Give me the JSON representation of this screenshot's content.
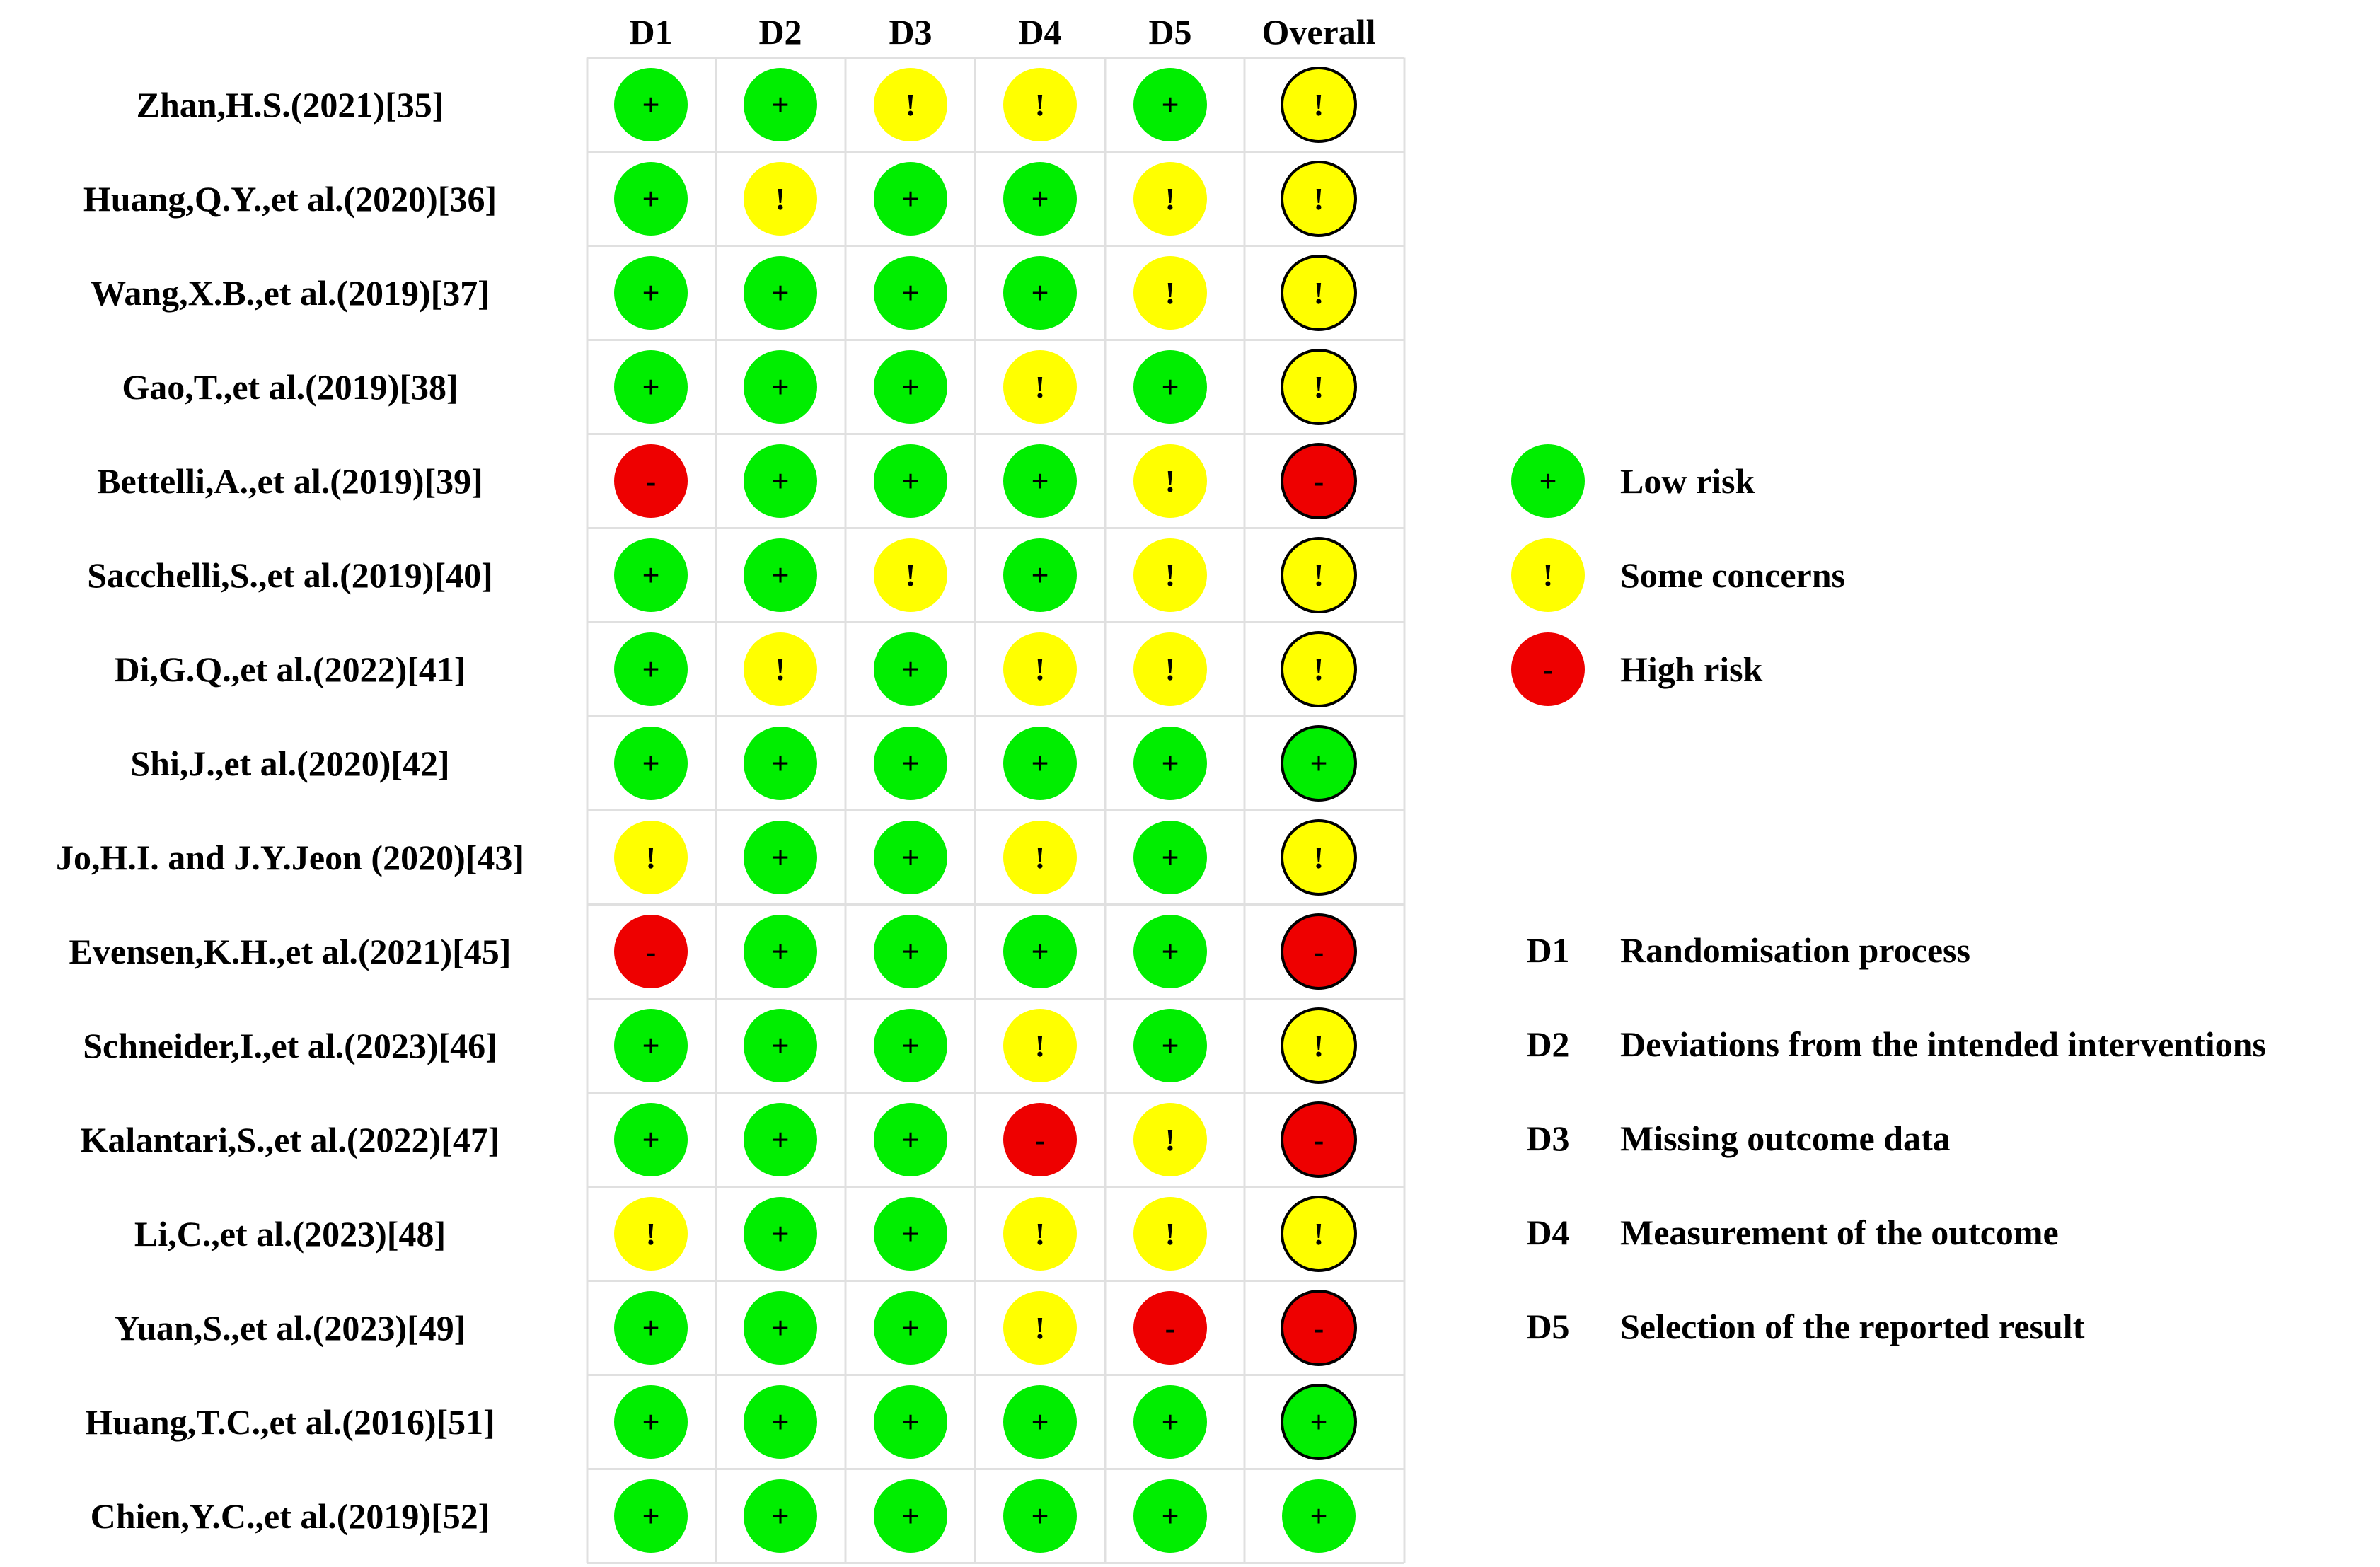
{
  "chart_data": {
    "type": "table",
    "columns": [
      "D1",
      "D2",
      "D3",
      "D4",
      "D5",
      "Overall"
    ],
    "rows": [
      {
        "study": "Zhan,H.S.(2021)[35]",
        "values": [
          "low",
          "low",
          "some",
          "some",
          "low",
          "some"
        ]
      },
      {
        "study": "Huang,Q.Y.,et al.(2020)[36]",
        "values": [
          "low",
          "some",
          "low",
          "low",
          "some",
          "some"
        ]
      },
      {
        "study": "Wang,X.B.,et al.(2019)[37]",
        "values": [
          "low",
          "low",
          "low",
          "low",
          "some",
          "some"
        ]
      },
      {
        "study": "Gao,T.,et al.(2019)[38]",
        "values": [
          "low",
          "low",
          "low",
          "some",
          "low",
          "some"
        ]
      },
      {
        "study": "Bettelli,A.,et al.(2019)[39]",
        "values": [
          "high",
          "low",
          "low",
          "low",
          "some",
          "high"
        ]
      },
      {
        "study": "Sacchelli,S.,et al.(2019)[40]",
        "values": [
          "low",
          "low",
          "some",
          "low",
          "some",
          "some"
        ]
      },
      {
        "study": "Di,G.Q.,et al.(2022)[41]",
        "values": [
          "low",
          "some",
          "low",
          "some",
          "some",
          "some"
        ]
      },
      {
        "study": "Shi,J.,et al.(2020)[42]",
        "values": [
          "low",
          "low",
          "low",
          "low",
          "low",
          "low"
        ]
      },
      {
        "study": "Jo,H.I. and J.Y.Jeon (2020)[43]",
        "values": [
          "some",
          "low",
          "low",
          "some",
          "low",
          "some"
        ]
      },
      {
        "study": "Evensen,K.H.,et al.(2021)[45]",
        "values": [
          "high",
          "low",
          "low",
          "low",
          "low",
          "high"
        ]
      },
      {
        "study": "Schneider,I.,et al.(2023)[46]",
        "values": [
          "low",
          "low",
          "low",
          "some",
          "low",
          "some"
        ]
      },
      {
        "study": "Kalantari,S.,et al.(2022)[47]",
        "values": [
          "low",
          "low",
          "low",
          "high",
          "some",
          "high"
        ]
      },
      {
        "study": "Li,C.,et al.(2023)[48]",
        "values": [
          "some",
          "low",
          "low",
          "some",
          "some",
          "some"
        ]
      },
      {
        "study": "Yuan,S.,et al.(2023)[49]",
        "values": [
          "low",
          "low",
          "low",
          "some",
          "high",
          "high"
        ]
      },
      {
        "study": "Huang,T.C.,et al.(2016)[51]",
        "values": [
          "low",
          "low",
          "low",
          "low",
          "low",
          "low"
        ]
      },
      {
        "study": "Chien,Y.C.,et al.(2019)[52]",
        "values": [
          "low",
          "low",
          "low",
          "low",
          "low",
          "low"
        ]
      }
    ],
    "judgements": {
      "low": {
        "symbol": "+",
        "label": "Low risk",
        "color": "#00ee00"
      },
      "some": {
        "symbol": "!",
        "label": "Some concerns",
        "color": "#ffff00"
      },
      "high": {
        "symbol": "-",
        "label": "High risk",
        "color": "#ee0000"
      }
    },
    "legend_order": [
      "low",
      "some",
      "high"
    ],
    "domains": [
      {
        "code": "D1",
        "label": "Randomisation process"
      },
      {
        "code": "D2",
        "label": "Deviations from the intended interventions"
      },
      {
        "code": "D3",
        "label": "Missing outcome data"
      },
      {
        "code": "D4",
        "label": "Measurement of the outcome"
      },
      {
        "code": "D5",
        "label": "Selection of the reported result"
      }
    ]
  }
}
